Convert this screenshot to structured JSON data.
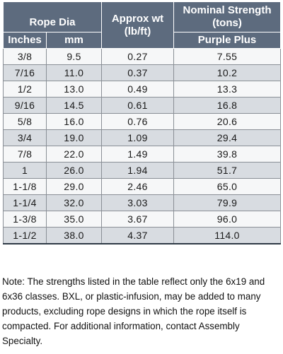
{
  "table": {
    "header": {
      "rope_dia": "Rope Dia",
      "approx_wt": "Approx wt (lb/ft)",
      "nominal_strength": "Nominal Strength (tons)",
      "inches": "Inches",
      "mm": "mm",
      "purple_plus": "Purple Plus"
    },
    "rows": [
      {
        "inches": "3/8",
        "mm": "9.5",
        "wt": "0.27",
        "strength": "7.55"
      },
      {
        "inches": "7/16",
        "mm": "11.0",
        "wt": "0.37",
        "strength": "10.2"
      },
      {
        "inches": "1/2",
        "mm": "13.0",
        "wt": "0.49",
        "strength": "13.3"
      },
      {
        "inches": "9/16",
        "mm": "14.5",
        "wt": "0.61",
        "strength": "16.8"
      },
      {
        "inches": "5/8",
        "mm": "16.0",
        "wt": "0.76",
        "strength": "20.6"
      },
      {
        "inches": "3/4",
        "mm": "19.0",
        "wt": "1.09",
        "strength": "29.4"
      },
      {
        "inches": "7/8",
        "mm": "22.0",
        "wt": "1.49",
        "strength": "39.8"
      },
      {
        "inches": "1",
        "mm": "26.0",
        "wt": "1.94",
        "strength": "51.7"
      },
      {
        "inches": "1-1/8",
        "mm": "29.0",
        "wt": "2.46",
        "strength": "65.0"
      },
      {
        "inches": "1-1/4",
        "mm": "32.0",
        "wt": "3.03",
        "strength": "79.9"
      },
      {
        "inches": "1-3/8",
        "mm": "35.0",
        "wt": "3.67",
        "strength": "96.0"
      },
      {
        "inches": "1-1/2",
        "mm": "38.0",
        "wt": "4.37",
        "strength": "114.0"
      }
    ]
  },
  "note": "Note:  The strengths listed in the table reflect only the 6x19 and 6x36 classes. BXL, or plastic-infusion, may be added to many products, excluding rope designs in which the rope itself is compacted. For additional information, contact Assembly Specialty.",
  "colors": {
    "header_bg": "#5d6b7e",
    "row_light": "#f6f7f8",
    "row_dark": "#d8dce1"
  }
}
